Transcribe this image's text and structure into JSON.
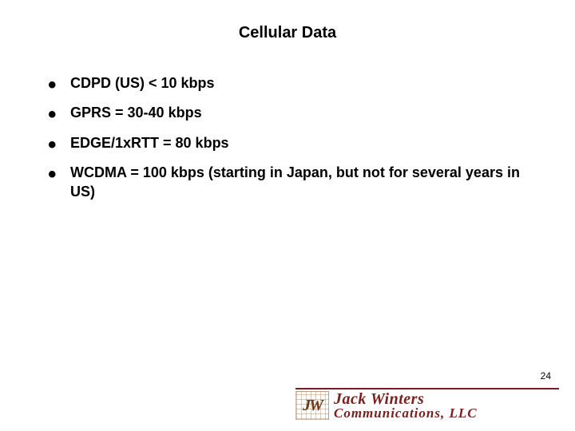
{
  "slide": {
    "title": "Cellular Data",
    "title_fontsize": 20,
    "bullets": [
      "CDPD (US) < 10 kbps",
      "GPRS = 30-40 kbps",
      "EDGE/1xRTT = 80 kbps",
      "WCDMA = 100 kbps (starting in Japan, but not for several years in US)"
    ],
    "bullet_fontsize": 18,
    "background_color": "#ffffff",
    "text_color": "#000000"
  },
  "page_number": "24",
  "logo": {
    "monogram": "JW",
    "line1": "Jack Winters",
    "line2": "Communications, LLC",
    "brand_color": "#7a1f1f",
    "accent_color": "#6a3a1a"
  }
}
